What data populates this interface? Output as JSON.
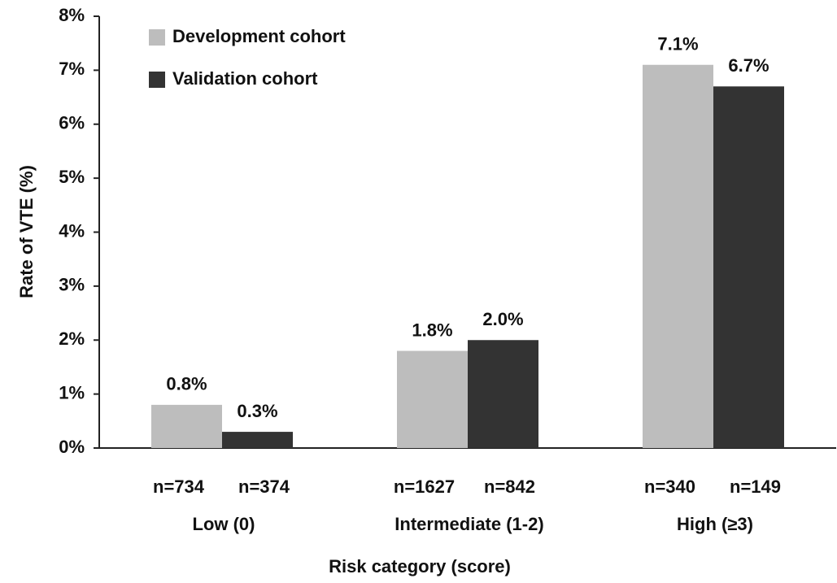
{
  "chart_data": {
    "type": "bar",
    "categories": [
      "Low (0)",
      "Intermediate (1-2)",
      "High (≥3)"
    ],
    "series": [
      {
        "name": "Development cohort",
        "color": "#bdbdbd",
        "values": [
          0.8,
          1.8,
          7.1
        ],
        "value_labels": [
          "0.8%",
          "1.8%",
          "7.1%"
        ],
        "sample_sizes": [
          "n=734",
          "n=1627",
          "n=340"
        ]
      },
      {
        "name": "Validation cohort",
        "color": "#333333",
        "values": [
          0.3,
          2.0,
          6.7
        ],
        "value_labels": [
          "0.3%",
          "2.0%",
          "6.7%"
        ],
        "sample_sizes": [
          "n=374",
          "n=842",
          "n=149"
        ]
      }
    ],
    "ylabel": "Rate of VTE (%)",
    "xlabel": "Risk category (score)",
    "ylim": [
      0,
      8
    ],
    "yticks": [
      {
        "value": 0,
        "label": "0%"
      },
      {
        "value": 1,
        "label": "1%"
      },
      {
        "value": 2,
        "label": "2%"
      },
      {
        "value": 3,
        "label": "3%"
      },
      {
        "value": 4,
        "label": "4%"
      },
      {
        "value": 5,
        "label": "5%"
      },
      {
        "value": 6,
        "label": "6%"
      },
      {
        "value": 7,
        "label": "7%"
      },
      {
        "value": 8,
        "label": "8%"
      }
    ],
    "legend": "upper-left"
  }
}
